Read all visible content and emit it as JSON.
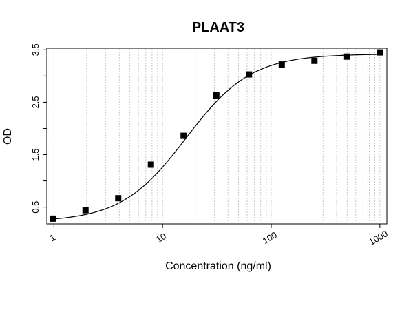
{
  "chart_data": {
    "type": "scatter",
    "title": "PLAAT3",
    "xlabel": "Concentration (ng/ml)",
    "ylabel": "OD",
    "x_scale": "log",
    "xlim": [
      0.86,
      1160
    ],
    "ylim": [
      0.18,
      3.53
    ],
    "x_ticks": [
      1,
      10,
      100,
      1000
    ],
    "x_tick_labels": [
      "1",
      "10",
      "100",
      "1000"
    ],
    "y_ticks": [
      0.5,
      1.0,
      1.5,
      2.0,
      2.5,
      3.0,
      3.5
    ],
    "y_tick_labels": [
      "0.5",
      "",
      "1.5",
      "",
      "2.5",
      "",
      "3.5"
    ],
    "grid": "vertical dotted lines at log-spaced minor ticks",
    "series": [
      {
        "values": [
          {
            "x": 0.977,
            "y": 0.28
          },
          {
            "x": 1.953,
            "y": 0.44
          },
          {
            "x": 3.906,
            "y": 0.67
          },
          {
            "x": 7.8125,
            "y": 1.31
          },
          {
            "x": 15.625,
            "y": 1.86
          },
          {
            "x": 31.25,
            "y": 2.63
          },
          {
            "x": 62.5,
            "y": 3.03
          },
          {
            "x": 125,
            "y": 3.22
          },
          {
            "x": 250,
            "y": 3.29
          },
          {
            "x": 500,
            "y": 3.37
          },
          {
            "x": 1000,
            "y": 3.45
          }
        ]
      }
    ],
    "fit_curve": {
      "type": "4PL",
      "bottom": 0.22,
      "top": 3.42,
      "ec50": 16.5,
      "hill": 1.45
    }
  }
}
